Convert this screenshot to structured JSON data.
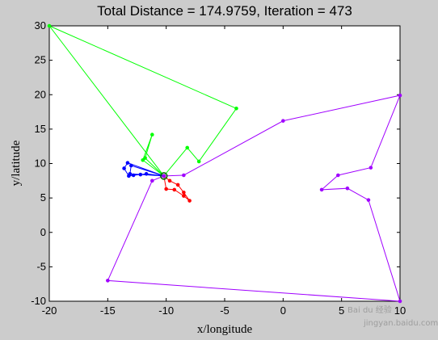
{
  "chart_data": {
    "type": "line",
    "title": "Total Distance = 174.9759, Iteration = 473",
    "xlabel": "x/longitude",
    "ylabel": "y/latitude",
    "xlim": [
      -20,
      10
    ],
    "ylim": [
      -10,
      30
    ],
    "xticks": [
      -20,
      -15,
      -10,
      -5,
      0,
      5,
      10
    ],
    "yticks": [
      -10,
      -5,
      0,
      5,
      10,
      15,
      20,
      25,
      30
    ],
    "grid": false,
    "depot": {
      "x": -10.2,
      "y": 8.2,
      "color": "#006600"
    },
    "series": [
      {
        "color": "#00ff00",
        "points": [
          [
            -10.2,
            8.2
          ],
          [
            -20,
            30
          ],
          [
            -4,
            18
          ],
          [
            -7.2,
            10.3
          ],
          [
            -8.2,
            12.3
          ],
          [
            -10.2,
            8.2
          ],
          [
            -12,
            10.5
          ],
          [
            -11.2,
            14.2
          ],
          [
            -11.8,
            10.8
          ],
          [
            -10.2,
            8.2
          ]
        ]
      },
      {
        "color": "#0000ff",
        "points": [
          [
            -10.2,
            8.2
          ],
          [
            -13.3,
            10.1
          ],
          [
            -13.6,
            9.3
          ],
          [
            -13.2,
            8.2
          ],
          [
            -12.8,
            8.3
          ],
          [
            -12.2,
            8.4
          ],
          [
            -11.7,
            8.5
          ],
          [
            -10.2,
            8.2
          ],
          [
            -13,
            9.7
          ],
          [
            -13.1,
            8.5
          ],
          [
            -10.2,
            8.2
          ]
        ]
      },
      {
        "color": "#ff0000",
        "points": [
          [
            -10.2,
            8.2
          ],
          [
            -9.7,
            7.5
          ],
          [
            -9,
            6.9
          ],
          [
            -8.5,
            5.8
          ],
          [
            -8,
            4.6
          ],
          [
            -8.5,
            5.3
          ],
          [
            -9.3,
            6.2
          ],
          [
            -10,
            6.3
          ],
          [
            -10.2,
            8.2
          ]
        ]
      },
      {
        "color": "#a000ff",
        "points": [
          [
            -10.2,
            8.2
          ],
          [
            -8.5,
            8.3
          ],
          [
            0,
            16.2
          ],
          [
            10,
            19.9
          ],
          [
            7.5,
            9.4
          ],
          [
            4.7,
            8.3
          ],
          [
            3.3,
            6.2
          ],
          [
            5.5,
            6.4
          ],
          [
            7.3,
            4.7
          ],
          [
            10,
            -10
          ],
          [
            -15,
            -7
          ],
          [
            -11.2,
            7.5
          ],
          [
            -10.2,
            8.2
          ]
        ]
      }
    ]
  },
  "watermark": {
    "site": "jingyan.baidu.com",
    "brand": "Bai du 经验"
  }
}
